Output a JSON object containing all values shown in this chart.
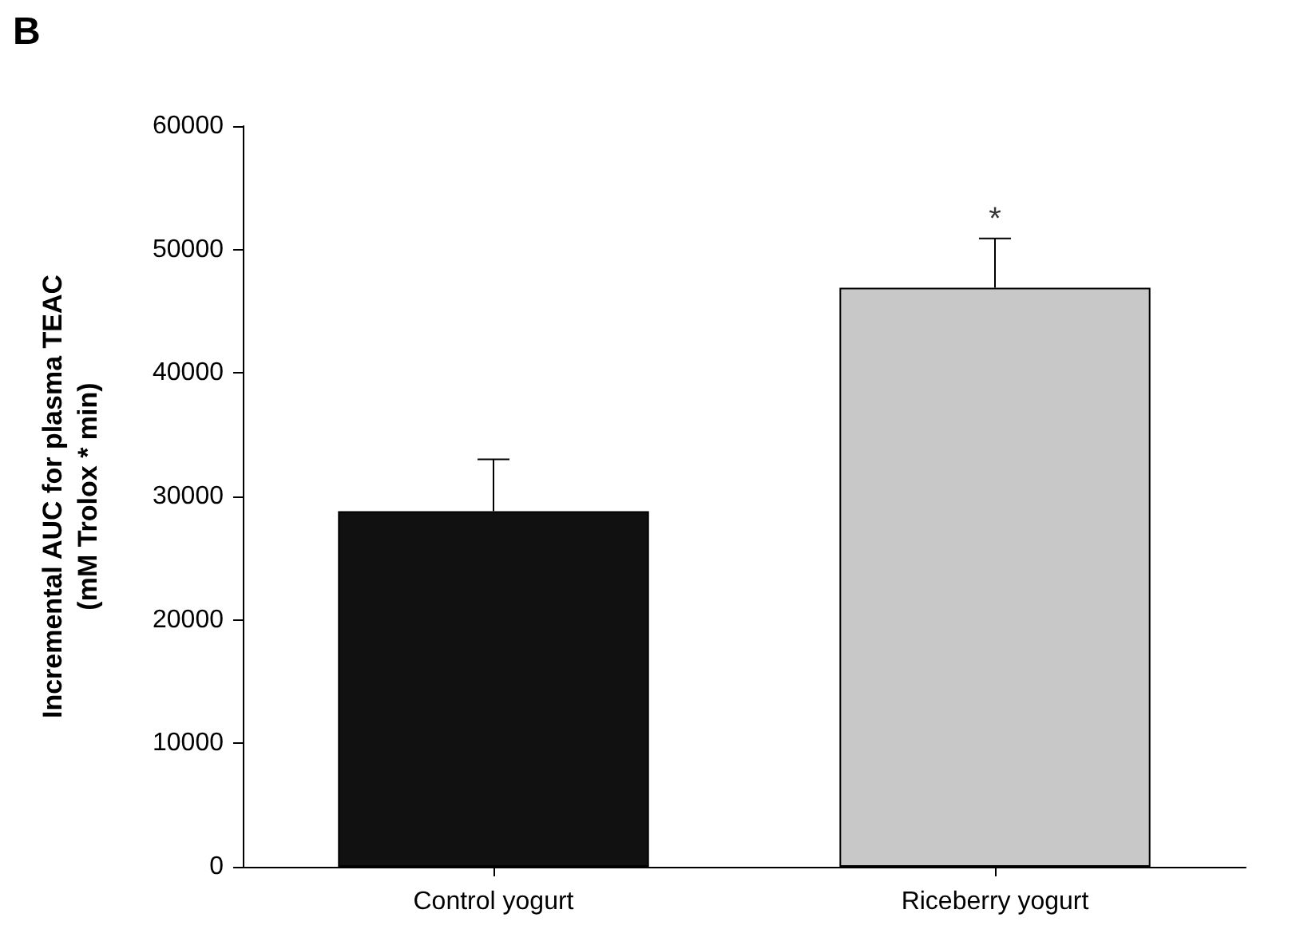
{
  "chart_data": {
    "type": "bar",
    "categories": [
      "Control yogurt",
      "Riceberry yogurt"
    ],
    "values": [
      28800,
      46900
    ],
    "colors": [
      "#111111",
      "#c8c8c8"
    ],
    "errors": [
      [
        28800,
        33000
      ],
      [
        46900,
        50900
      ]
    ],
    "ylabel": "Incremental AUC for plasma TEAC\n(mM Trolox * min)",
    "ylim": [
      0,
      60000
    ],
    "yticks": [
      0,
      10000,
      20000,
      30000,
      40000,
      50000,
      60000
    ],
    "annotations": [
      "B",
      {
        "text": "*",
        "x": "Riceberry yogurt",
        "y": 50900
      }
    ],
    "grid": false
  }
}
